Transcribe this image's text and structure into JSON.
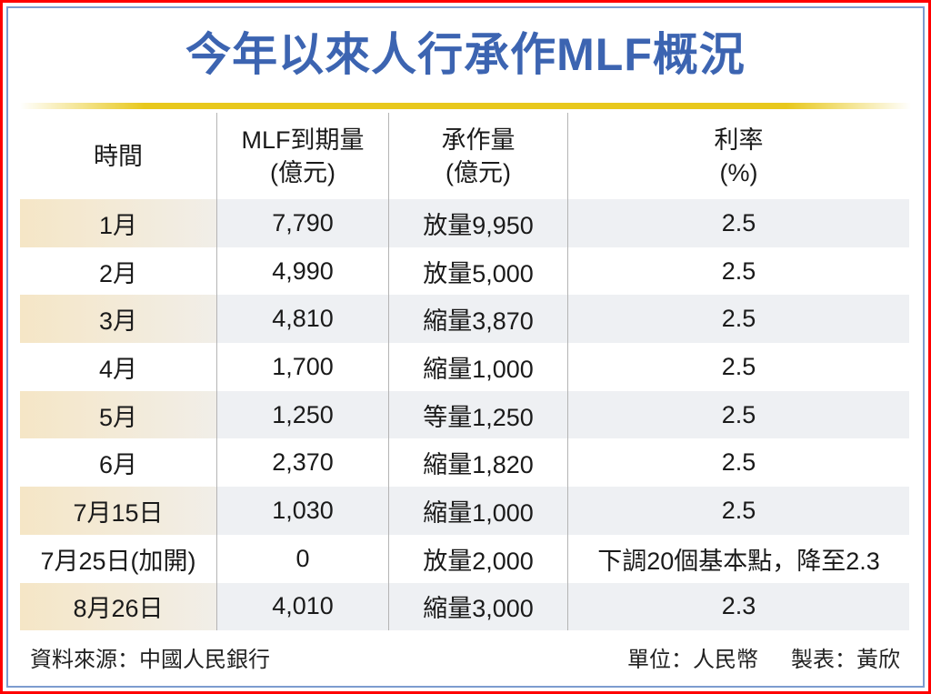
{
  "title": "今年以來人行承作MLF概況",
  "colors": {
    "title": "#3c64b1",
    "outer_border": "#ff0000",
    "inner_border": "#7d9ccf",
    "accent_bar": "#e8c81c",
    "shaded_row": "#eef0f3",
    "shaded_first_col": "#f5e6c6"
  },
  "table": {
    "headers": [
      {
        "line1": "時間",
        "line2": ""
      },
      {
        "line1": "MLF到期量",
        "line2": "(億元)"
      },
      {
        "line1": "承作量",
        "line2": "(億元)"
      },
      {
        "line1": "利率",
        "line2": "(%)"
      }
    ],
    "rows": [
      {
        "time": "1月",
        "maturity": "7,790",
        "operation": "放量9,950",
        "rate": "2.5"
      },
      {
        "time": "2月",
        "maturity": "4,990",
        "operation": "放量5,000",
        "rate": "2.5"
      },
      {
        "time": "3月",
        "maturity": "4,810",
        "operation": "縮量3,870",
        "rate": "2.5"
      },
      {
        "time": "4月",
        "maturity": "1,700",
        "operation": "縮量1,000",
        "rate": "2.5"
      },
      {
        "time": "5月",
        "maturity": "1,250",
        "operation": "等量1,250",
        "rate": "2.5"
      },
      {
        "time": "6月",
        "maturity": "2,370",
        "operation": "縮量1,820",
        "rate": "2.5"
      },
      {
        "time": "7月15日",
        "maturity": "1,030",
        "operation": "縮量1,000",
        "rate": "2.5"
      },
      {
        "time": "7月25日(加開)",
        "maturity": "0",
        "operation": "放量2,000",
        "rate": "下調20個基本點，降至2.3"
      },
      {
        "time": "8月26日",
        "maturity": "4,010",
        "operation": "縮量3,000",
        "rate": "2.3"
      }
    ]
  },
  "footer": {
    "source": "資料來源：中國人民銀行",
    "unit": "單位：人民幣",
    "author": "製表：黃欣"
  }
}
